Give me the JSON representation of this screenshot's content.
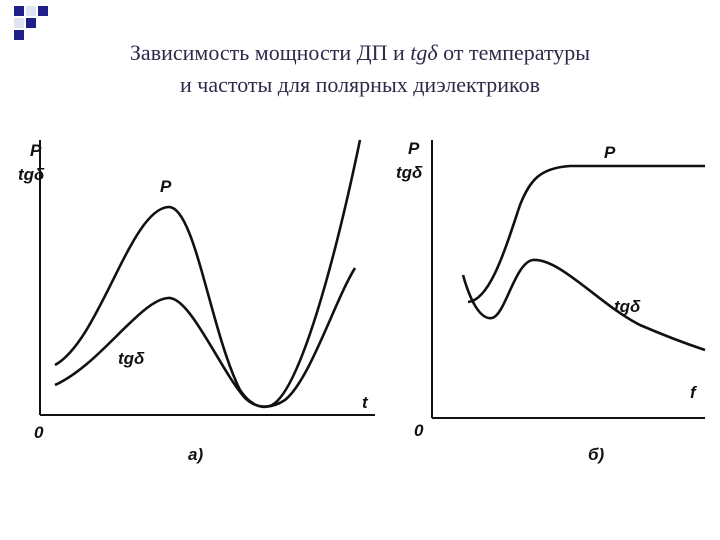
{
  "title": {
    "line1": {
      "before": "Зависимость мощности ДП и ",
      "italic": "tgδ",
      "after": " от температуры"
    },
    "line2": "и частоты для полярных диэлектриков"
  },
  "panels": [
    {
      "axis_label_top": "P",
      "axis_label_bottom": "tgδ",
      "origin": "0",
      "x_label": "t",
      "curve_p": "P",
      "curve_tg": "tgδ",
      "caption": "а)"
    },
    {
      "axis_label_top": "P",
      "axis_label_bottom": "tgδ",
      "origin": "0",
      "x_label": "f",
      "curve_p": "P",
      "curve_tg": "tgδ",
      "caption": "б)"
    }
  ]
}
